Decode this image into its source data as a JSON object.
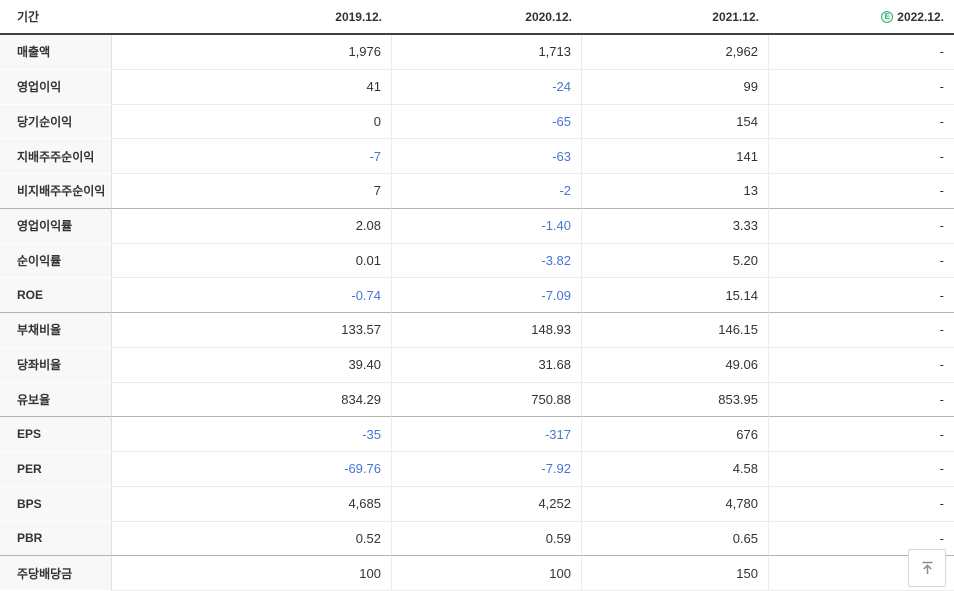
{
  "colors": {
    "text": "#333333",
    "negative_value": "#4577d2",
    "estimate_green": "#3cb179",
    "header_border": "#3f3f3f",
    "group_border": "#b4b4b4"
  },
  "table": {
    "header": {
      "period_label": "기간",
      "columns": [
        "2019.12.",
        "2020.12.",
        "2021.12.",
        "2022.12."
      ],
      "estimate_badge": "E"
    },
    "rows": [
      {
        "label": "매출액",
        "values": [
          "1,976",
          "1,713",
          "2,962",
          "-"
        ],
        "group_end": false
      },
      {
        "label": "영업이익",
        "values": [
          "41",
          "-24",
          "99",
          "-"
        ],
        "group_end": false
      },
      {
        "label": "당기순이익",
        "values": [
          "0",
          "-65",
          "154",
          "-"
        ],
        "group_end": false
      },
      {
        "label": "지배주주순이익",
        "values": [
          "-7",
          "-63",
          "141",
          "-"
        ],
        "group_end": false
      },
      {
        "label": "비지배주주순이익",
        "values": [
          "7",
          "-2",
          "13",
          "-"
        ],
        "group_end": true
      },
      {
        "label": "영업이익률",
        "values": [
          "2.08",
          "-1.40",
          "3.33",
          "-"
        ],
        "group_end": false
      },
      {
        "label": "순이익률",
        "values": [
          "0.01",
          "-3.82",
          "5.20",
          "-"
        ],
        "group_end": false
      },
      {
        "label": "ROE",
        "values": [
          "-0.74",
          "-7.09",
          "15.14",
          "-"
        ],
        "group_end": true
      },
      {
        "label": "부채비율",
        "values": [
          "133.57",
          "148.93",
          "146.15",
          "-"
        ],
        "group_end": false
      },
      {
        "label": "당좌비율",
        "values": [
          "39.40",
          "31.68",
          "49.06",
          "-"
        ],
        "group_end": false
      },
      {
        "label": "유보율",
        "values": [
          "834.29",
          "750.88",
          "853.95",
          "-"
        ],
        "group_end": true
      },
      {
        "label": "EPS",
        "values": [
          "-35",
          "-317",
          "676",
          "-"
        ],
        "group_end": false
      },
      {
        "label": "PER",
        "values": [
          "-69.76",
          "-7.92",
          "4.58",
          "-"
        ],
        "group_end": false
      },
      {
        "label": "BPS",
        "values": [
          "4,685",
          "4,252",
          "4,780",
          "-"
        ],
        "group_end": false
      },
      {
        "label": "PBR",
        "values": [
          "0.52",
          "0.59",
          "0.65",
          "-"
        ],
        "group_end": true
      },
      {
        "label": "주당배당금",
        "values": [
          "100",
          "100",
          "150",
          "-"
        ],
        "group_end": false
      }
    ]
  },
  "scroll_top_button": {
    "icon": "arrow-up-to-bar"
  }
}
